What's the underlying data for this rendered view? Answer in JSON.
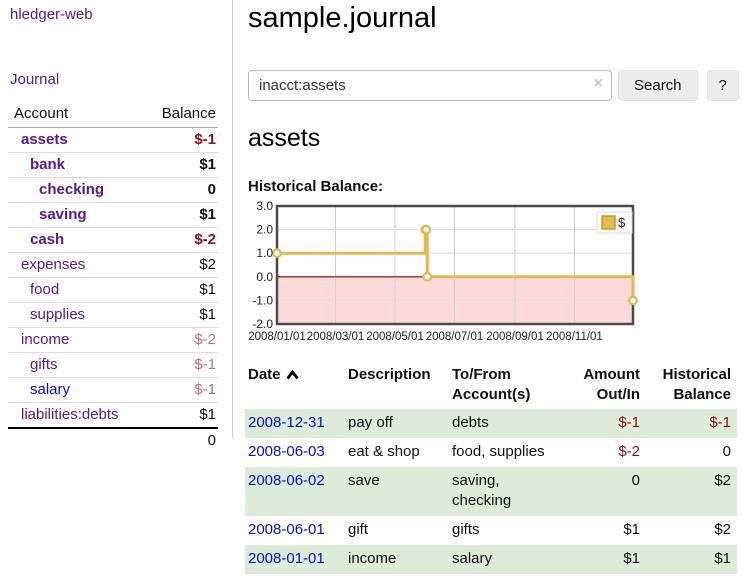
{
  "app": {
    "brand": "hledger-web",
    "nav_journal": "Journal"
  },
  "sidebar": {
    "headers": {
      "account": "Account",
      "balance": "Balance"
    },
    "accounts": [
      {
        "name": "assets",
        "balance": "$-1",
        "level": 1,
        "bold": true,
        "neg": "dark"
      },
      {
        "name": "bank",
        "balance": "$1",
        "level": 2,
        "bold": true,
        "neg": ""
      },
      {
        "name": "checking",
        "balance": "0",
        "level": 3,
        "bold": true,
        "neg": ""
      },
      {
        "name": "saving",
        "balance": "$1",
        "level": 3,
        "bold": true,
        "neg": ""
      },
      {
        "name": "cash",
        "balance": "$-2",
        "level": 2,
        "bold": true,
        "neg": "dark"
      },
      {
        "name": "expenses",
        "balance": "$2",
        "level": 1,
        "bold": false,
        "neg": ""
      },
      {
        "name": "food",
        "balance": "$1",
        "level": 2,
        "bold": false,
        "neg": ""
      },
      {
        "name": "supplies",
        "balance": "$1",
        "level": 2,
        "bold": false,
        "neg": ""
      },
      {
        "name": "income",
        "balance": "$-2",
        "level": 1,
        "bold": false,
        "neg": "light"
      },
      {
        "name": "gifts",
        "balance": "$-1",
        "level": 2,
        "bold": false,
        "neg": "light"
      },
      {
        "name": "salary",
        "balance": "$-1",
        "level": 2,
        "bold": false,
        "neg": "light",
        "link": "blue"
      },
      {
        "name": "liabilities:debts",
        "balance": "$1",
        "level": 1,
        "bold": false,
        "neg": ""
      }
    ],
    "total": "0"
  },
  "header": {
    "title": "sample.journal"
  },
  "search": {
    "value": "inacct:assets",
    "clear_icon": "×",
    "button_label": "Search",
    "help_label": "?"
  },
  "account_page": {
    "title": "assets",
    "chart_label": "Historical Balance:"
  },
  "chart_data": {
    "type": "line",
    "title": "Historical Balance",
    "step": true,
    "x_range": [
      "2008-01-01",
      "2008-12-31"
    ],
    "ylim": [
      -2,
      3
    ],
    "y_ticks": [
      3.0,
      2.0,
      1.0,
      0.0,
      -1.0,
      -2.0
    ],
    "x_ticks": [
      "2008/01/01",
      "2008/03/01",
      "2008/05/01",
      "2008/07/01",
      "2008/09/01",
      "2008/11/01"
    ],
    "series": [
      {
        "name": "$",
        "color": "#e5b94b",
        "points": [
          [
            "2008-01-01",
            1
          ],
          [
            "2008-06-01",
            2
          ],
          [
            "2008-06-02",
            2
          ],
          [
            "2008-06-03",
            0
          ],
          [
            "2008-12-31",
            -1
          ]
        ]
      }
    ],
    "legend": {
      "position": "top-right",
      "label": "$",
      "swatch_color": "#e5b94b"
    },
    "negative_region_fill": "#fcdada",
    "zero_line_color": "#8b0000",
    "grid": true
  },
  "register": {
    "headers": {
      "date": "Date",
      "description": "Description",
      "accounts": "To/From Account(s)",
      "amount": "Amount Out/In",
      "balance": "Historical Balance"
    },
    "rows": [
      {
        "date": "2008-12-31",
        "description": "pay off",
        "accounts": "debts",
        "amount": "$-1",
        "balance": "$-1"
      },
      {
        "date": "2008-06-03",
        "description": "eat & shop",
        "accounts": "food, supplies",
        "amount": "$-2",
        "balance": "0"
      },
      {
        "date": "2008-06-02",
        "description": "save",
        "accounts": "saving, checking",
        "amount": "0",
        "balance": "$2"
      },
      {
        "date": "2008-06-01",
        "description": "gift",
        "accounts": "gifts",
        "amount": "$1",
        "balance": "$2"
      },
      {
        "date": "2008-01-01",
        "description": "income",
        "accounts": "salary",
        "amount": "$1",
        "balance": "$1"
      }
    ]
  }
}
